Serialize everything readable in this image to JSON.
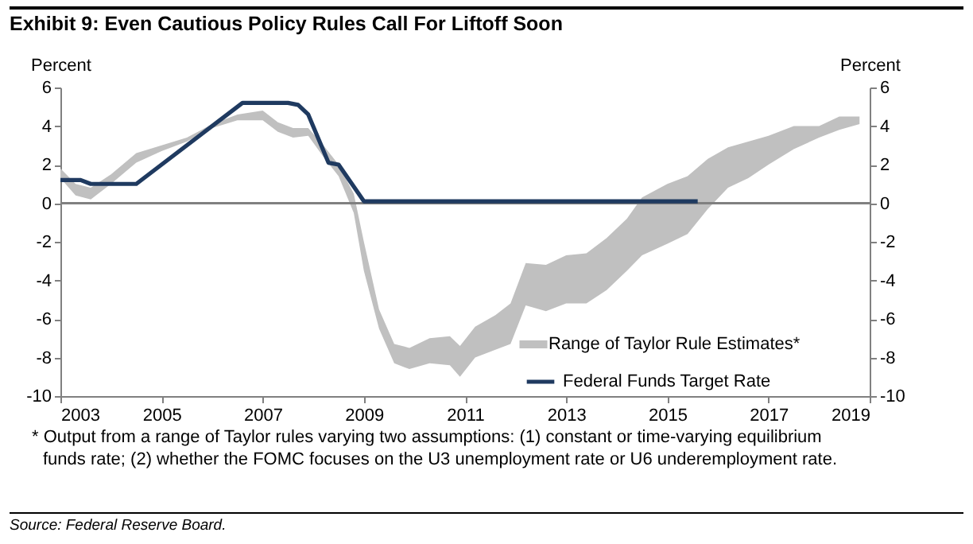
{
  "chart_data": {
    "type": "line",
    "title": "Exhibit 9: Even Cautious Policy Rules Call For Liftoff Soon",
    "ylabel": "Percent",
    "y2label": "Percent",
    "xlim": [
      2003,
      2019
    ],
    "xticks": [
      2003,
      2005,
      2007,
      2009,
      2011,
      2013,
      2015,
      2017,
      2019
    ],
    "ylim": [
      -10,
      6
    ],
    "yticks": [
      -10,
      -8,
      -6,
      -4,
      -2,
      0,
      2,
      4,
      6
    ],
    "y2lim": [
      -10,
      6
    ],
    "y2ticks": [
      -10,
      -8,
      -6,
      -4,
      -2,
      0,
      2,
      4,
      6
    ],
    "grid": false,
    "legend": "bottom right",
    "ref_lines": [
      {
        "axis": "y",
        "value": 0,
        "color": "#808080"
      }
    ],
    "series": [
      {
        "name": "Range of Taylor Rule Estimates*",
        "color": "#c0c0c0",
        "x": [
          2003.0,
          2003.3,
          2003.6,
          2004.0,
          2004.5,
          2005.0,
          2005.5,
          2006.0,
          2006.5,
          2007.0,
          2007.3,
          2007.6,
          2007.9,
          2008.2,
          2008.5,
          2008.8,
          2009.0,
          2009.3,
          2009.6,
          2009.9,
          2010.3,
          2010.7,
          2010.9,
          2011.2,
          2011.6,
          2011.9,
          2012.2,
          2012.6,
          2013.0,
          2013.4,
          2013.8,
          2014.2,
          2014.5,
          2015.0,
          2015.4,
          2015.8,
          2016.2,
          2016.6,
          2017.0,
          2017.5,
          2018.0,
          2018.4,
          2018.8
        ],
        "lower": [
          1.3,
          0.4,
          0.2,
          1.0,
          2.1,
          2.7,
          3.2,
          3.9,
          4.3,
          4.3,
          3.7,
          3.4,
          3.5,
          2.4,
          1.4,
          -0.5,
          -3.5,
          -6.5,
          -8.3,
          -8.6,
          -8.3,
          -8.4,
          -9.0,
          -8.0,
          -7.6,
          -7.3,
          -5.3,
          -5.6,
          -5.2,
          -5.2,
          -4.5,
          -3.5,
          -2.7,
          -2.1,
          -1.6,
          -0.3,
          0.8,
          1.3,
          2.0,
          2.8,
          3.4,
          3.8,
          4.1
        ],
        "values": [
          null,
          null,
          null,
          null,
          null,
          null,
          null,
          null,
          null,
          null,
          null,
          null,
          null,
          null,
          null,
          null,
          null,
          null,
          null,
          null,
          null,
          null,
          null,
          null,
          null,
          null,
          null,
          null,
          null,
          null,
          null,
          null,
          null,
          null,
          null,
          null,
          null,
          null,
          null,
          null,
          null,
          null,
          null
        ],
        "upper": [
          1.8,
          1.0,
          0.8,
          1.5,
          2.6,
          3.0,
          3.4,
          4.1,
          4.6,
          4.8,
          4.2,
          3.9,
          3.9,
          3.0,
          2.0,
          0.5,
          -2.0,
          -5.5,
          -7.3,
          -7.5,
          -7.0,
          -6.9,
          -7.4,
          -6.4,
          -5.8,
          -5.2,
          -3.1,
          -3.2,
          -2.7,
          -2.6,
          -1.8,
          -0.8,
          0.3,
          1.0,
          1.4,
          2.3,
          2.9,
          3.2,
          3.5,
          4.0,
          4.0,
          4.5,
          4.5
        ]
      },
      {
        "name": "Federal Funds Target Rate",
        "type": "line",
        "color": "#1f3a60",
        "x": [
          2003.0,
          2003.4,
          2003.6,
          2004.5,
          2006.6,
          2007.5,
          2007.7,
          2007.9,
          2008.3,
          2008.5,
          2009.0,
          2015.6
        ],
        "values": [
          1.2,
          1.2,
          1.0,
          1.0,
          5.2,
          5.2,
          5.1,
          4.6,
          2.1,
          2.0,
          0.1,
          0.1
        ]
      }
    ],
    "annotations": [
      "* Output from a range of Taylor rules varying two assumptions: (1) constant or time-varying equilibrium funds rate; (2) whether the FOMC focuses on the U3 unemployment rate or U6 underemployment rate.",
      "Source: Federal Reserve Board."
    ]
  }
}
